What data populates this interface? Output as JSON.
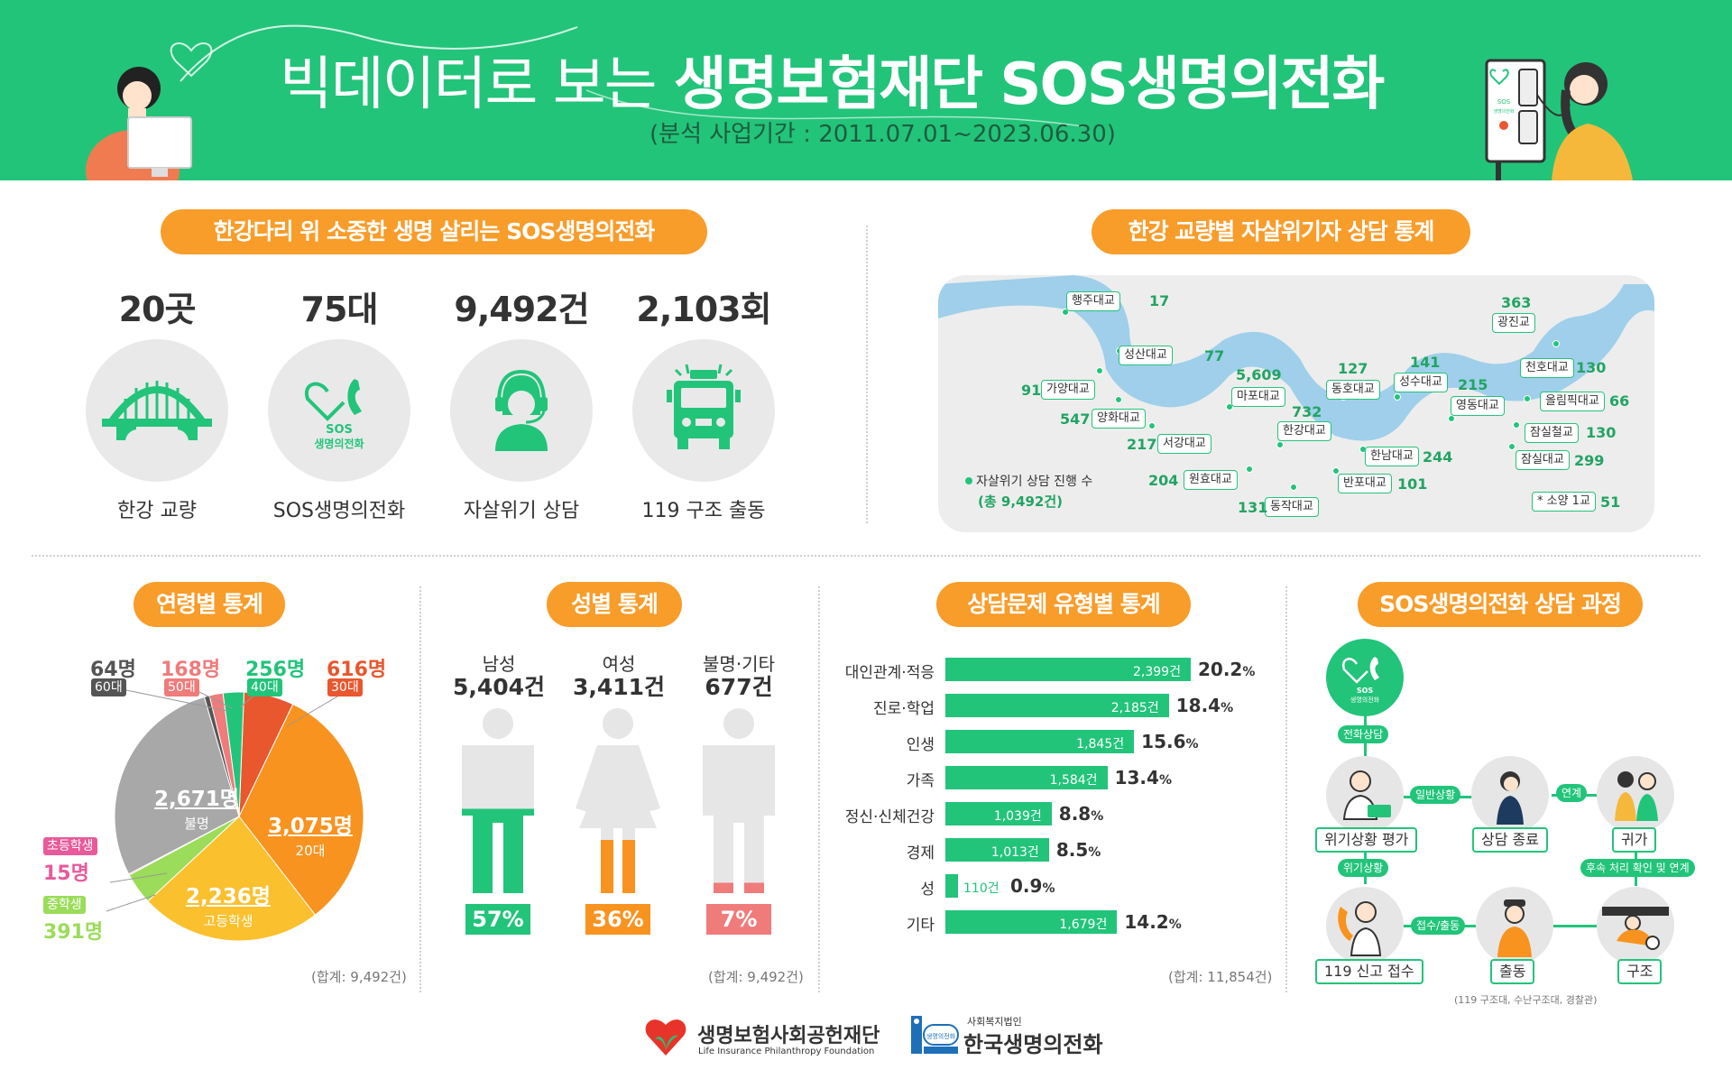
{
  "header": {
    "title_light": "빅데이터로 보는",
    "title_bold": "생명보험재단 SOS생명의전화",
    "period": "(분석 사업기간 : 2011.07.01~2023.06.30)",
    "phone_booth_text": "SOS\n생명의전화"
  },
  "summary": {
    "pill": "한강다리 위 소중한 생명 살리는 SOS생명의전화",
    "items": [
      {
        "value": "20곳",
        "label": "한강 교량",
        "icon": "bridge-icon"
      },
      {
        "value": "75대",
        "label": "SOS생명의전화",
        "icon": "sos-phone-icon",
        "icon_text_1": "SOS",
        "icon_text_2": "생명의전화"
      },
      {
        "value": "9,492건",
        "label": "자살위기 상담",
        "icon": "counselor-icon"
      },
      {
        "value": "2,103회",
        "label": "119 구조 출동",
        "icon": "fire-truck-icon"
      }
    ]
  },
  "bridges": {
    "pill": "한강 교량별 자살위기자 상담 통계",
    "legend_label": "자살위기 상담 진행 수",
    "legend_total": "(총 9,492건)",
    "items": [
      {
        "name": "행주대교",
        "count": "17"
      },
      {
        "name": "성산대교",
        "count": "77"
      },
      {
        "name": "가양대교",
        "count": "91"
      },
      {
        "name": "양화대교",
        "count": "547"
      },
      {
        "name": "서강대교",
        "count": "217"
      },
      {
        "name": "마포대교",
        "count": "5,609"
      },
      {
        "name": "원효대교",
        "count": "204"
      },
      {
        "name": "한강대교",
        "count": "732"
      },
      {
        "name": "동작대교",
        "count": "131"
      },
      {
        "name": "동호대교",
        "count": "127"
      },
      {
        "name": "반포대교",
        "count": "101"
      },
      {
        "name": "한남대교",
        "count": "244"
      },
      {
        "name": "성수대교",
        "count": "141"
      },
      {
        "name": "영동대교",
        "count": "215"
      },
      {
        "name": "광진교",
        "count": "363"
      },
      {
        "name": "천호대교",
        "count": "130"
      },
      {
        "name": "올림픽대교",
        "count": "66"
      },
      {
        "name": "잠실철교",
        "count": "130"
      },
      {
        "name": "잠실대교",
        "count": "299"
      },
      {
        "name": "* 소양 1교",
        "count": "51"
      }
    ]
  },
  "age": {
    "pill": "연령별 통계",
    "total_note": "(합계: 9,492건)",
    "chart_data": {
      "type": "pie",
      "slices": [
        {
          "label": "30대",
          "value": 616,
          "value_text": "616명",
          "color": "#e8572e"
        },
        {
          "label": "20대",
          "value": 3075,
          "value_text": "3,075명",
          "color": "#f8931f"
        },
        {
          "label": "고등학생",
          "value": 2236,
          "value_text": "2,236명",
          "color": "#fbc02d"
        },
        {
          "label": "중학생",
          "value": 391,
          "value_text": "391명",
          "color": "#9bdc5a"
        },
        {
          "label": "초등학생",
          "value": 15,
          "value_text": "15명",
          "color": "#e85a9b"
        },
        {
          "label": "불명",
          "value": 2671,
          "value_text": "2,671명",
          "color": "#a8a8a8"
        },
        {
          "label": "60대",
          "value": 64,
          "value_text": "64명",
          "color": "#555555"
        },
        {
          "label": "50대",
          "value": 168,
          "value_text": "168명",
          "color": "#f07b7b"
        },
        {
          "label": "40대",
          "value": 256,
          "value_text": "256명",
          "color": "#22c47a"
        }
      ]
    }
  },
  "gender": {
    "pill": "성별 통계",
    "total_note": "(합계: 9,492건)",
    "items": [
      {
        "label": "남성",
        "count": "5,404건",
        "pct": "57%",
        "fill": 0.57,
        "color": "#22c47a"
      },
      {
        "label": "여성",
        "count": "3,411건",
        "pct": "36%",
        "fill": 0.36,
        "color": "#f8931f"
      },
      {
        "label": "불명·기타",
        "count": "677건",
        "pct": "7%",
        "fill": 0.07,
        "color": "#f07b7b"
      }
    ]
  },
  "problems": {
    "pill": "상담문제 유형별 통계",
    "total_note": "(합계: 11,854건)",
    "chart_data": {
      "type": "bar",
      "orientation": "horizontal",
      "categories": [
        "대인관계·적응",
        "진로·학업",
        "인생",
        "가족",
        "정신·신체건강",
        "경제",
        "성",
        "기타"
      ],
      "values": [
        2399,
        2185,
        1845,
        1584,
        1039,
        1013,
        110,
        1679
      ],
      "value_labels": [
        "2,399건",
        "2,185건",
        "1,845건",
        "1,584건",
        "1,039건",
        "1,013건",
        "110건",
        "1,679건"
      ],
      "percents": [
        "20.2",
        "18.4",
        "15.6",
        "13.4",
        "8.8",
        "8.5",
        "0.9",
        "14.2"
      ],
      "pct_unit": "%",
      "color": "#22c47a"
    }
  },
  "process": {
    "pill": "SOS생명의전화 상담 과정",
    "start_text_1": "SOS",
    "start_text_2": "생명의전화",
    "tag_call": "전화상담",
    "tag_normal": "일반상황",
    "tag_link": "연계",
    "tag_crisis": "위기상황",
    "tag_followup": "후속 처리 확인 및 연계",
    "tag_receive": "접수/출동",
    "assess": "위기상황 평가",
    "end": "상담 종료",
    "home": "귀가",
    "report": "119 신고 접수",
    "dispatch": "출동",
    "rescue": "구조",
    "footnote": "(119 구조대, 수난구조대, 경찰관)"
  },
  "footer": {
    "org1_name": "생명보험사회공헌재단",
    "org1_en": "Life Insurance Philanthropy Foundation",
    "org2_prefix": "사회복지법인",
    "org2_name": "한국생명의전화",
    "org2_badge": "생명의전화"
  }
}
